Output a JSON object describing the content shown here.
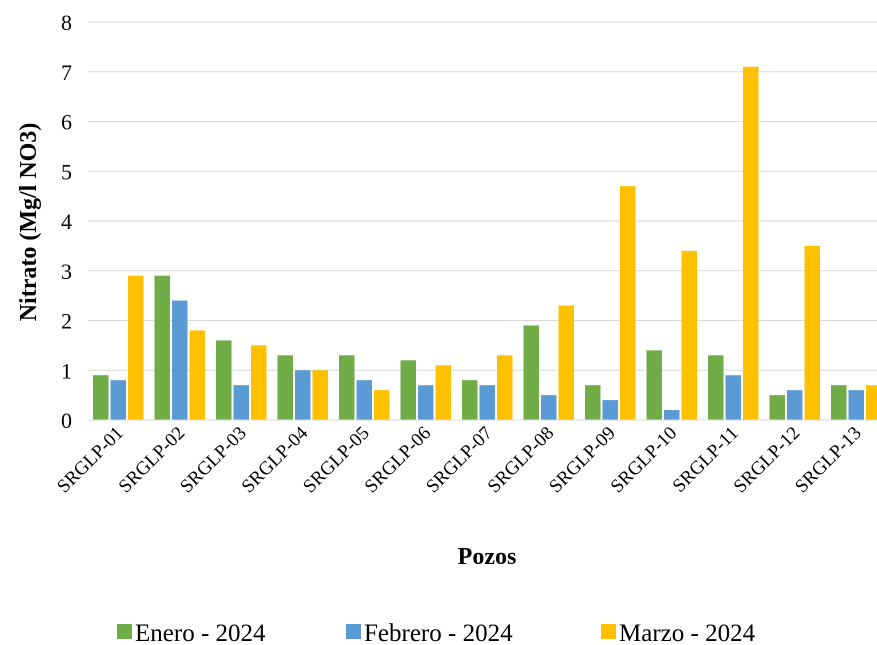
{
  "chart_data": {
    "type": "bar",
    "title": "",
    "xlabel": "Pozos",
    "ylabel": "Nitrato (Mg/l NO3)",
    "ylim": [
      0,
      8
    ],
    "yticks": [
      0,
      1,
      2,
      3,
      4,
      5,
      6,
      7,
      8
    ],
    "grid": true,
    "legend_position": "bottom",
    "categories": [
      "SRGLP-01",
      "SRGLP-02",
      "SRGLP-03",
      "SRGLP-04",
      "SRGLP-05",
      "SRGLP-06",
      "SRGLP-07",
      "SRGLP-08",
      "SRGLP-09",
      "SRGLP-10",
      "SRGLP-11",
      "SRGLP-12",
      "SRGLP-13"
    ],
    "series": [
      {
        "name": "Enero - 2024",
        "color": "#70ad47",
        "values": [
          0.9,
          2.9,
          1.6,
          1.3,
          1.3,
          1.2,
          0.8,
          1.9,
          0.7,
          1.4,
          1.3,
          0.5,
          0.7
        ]
      },
      {
        "name": "Febrero - 2024",
        "color": "#5b9bd5",
        "values": [
          0.8,
          2.4,
          0.7,
          1.0,
          0.8,
          0.7,
          0.7,
          0.5,
          0.4,
          0.2,
          0.9,
          0.6,
          0.6
        ]
      },
      {
        "name": "Marzo - 2024",
        "color": "#ffc000",
        "values": [
          2.9,
          1.8,
          1.5,
          1.0,
          0.6,
          1.1,
          1.3,
          2.3,
          4.7,
          3.4,
          7.1,
          3.5,
          0.7
        ]
      }
    ]
  }
}
